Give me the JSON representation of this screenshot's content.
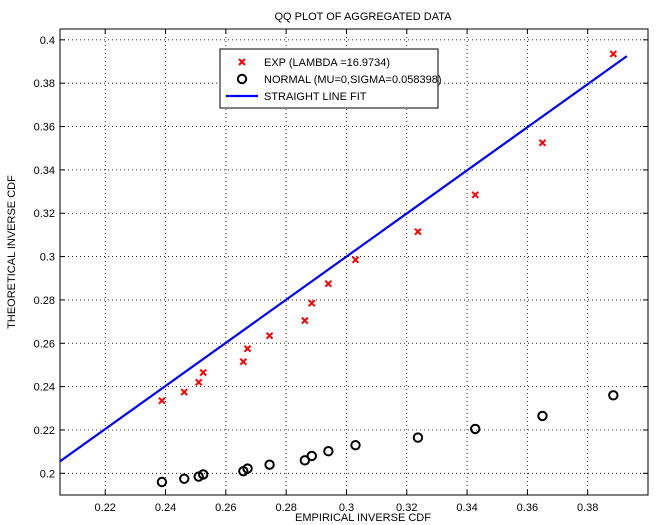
{
  "chart_data": {
    "type": "scatter",
    "title": "QQ PLOT OF AGGREGATED DATA",
    "xlabel": "EMPIRICAL INVERSE CDF",
    "ylabel": "THEORETICAL INVERSE CDF",
    "xlim": [
      0.205,
      0.4
    ],
    "ylim": [
      0.19,
      0.405
    ],
    "xticks": [
      0.22,
      0.24,
      0.26,
      0.28,
      0.3,
      0.32,
      0.34,
      0.36,
      0.38
    ],
    "xtick_labels": [
      "0.22",
      "0.24",
      "0.26",
      "0.28",
      "0.3",
      "0.32",
      "0.34",
      "0.36",
      "0.38"
    ],
    "yticks": [
      0.2,
      0.22,
      0.24,
      0.26,
      0.28,
      0.3,
      0.32,
      0.34,
      0.36,
      0.38,
      0.4
    ],
    "ytick_labels": [
      "0.2",
      "0.22",
      "0.24",
      "0.26",
      "0.28",
      "0.3",
      "0.32",
      "0.34",
      "0.36",
      "0.38",
      "0.4"
    ],
    "grid": true,
    "legend_position": "top-center",
    "series": [
      {
        "name": "EXP (LAMBDA =16.9734)",
        "marker": "x",
        "color": "#ff0000",
        "x": [
          0.2388,
          0.2462,
          0.251,
          0.2525,
          0.2658,
          0.2672,
          0.2745,
          0.2862,
          0.2885,
          0.294,
          0.303,
          0.3237,
          0.3427,
          0.365,
          0.3885
        ],
        "y": [
          0.2335,
          0.2375,
          0.242,
          0.2465,
          0.2515,
          0.2575,
          0.2635,
          0.2705,
          0.2785,
          0.2875,
          0.2985,
          0.3115,
          0.3285,
          0.3525,
          0.3935
        ]
      },
      {
        "name": "NORMAL (MU=0,SIGMA=0.058398)",
        "marker": "o",
        "color": "#000000",
        "x": [
          0.2388,
          0.2462,
          0.251,
          0.2525,
          0.2658,
          0.2672,
          0.2745,
          0.2862,
          0.2885,
          0.294,
          0.303,
          0.3237,
          0.3427,
          0.365,
          0.3885
        ],
        "y": [
          0.196,
          0.1975,
          0.1985,
          0.1995,
          0.201,
          0.2022,
          0.204,
          0.206,
          0.208,
          0.2102,
          0.213,
          0.2165,
          0.2205,
          0.2265,
          0.236
        ]
      },
      {
        "name": "STRAIGHT LINE FIT",
        "type": "line",
        "color": "#0000ff",
        "x": [
          0.205,
          0.393
        ],
        "y": [
          0.2055,
          0.3925
        ]
      }
    ]
  }
}
